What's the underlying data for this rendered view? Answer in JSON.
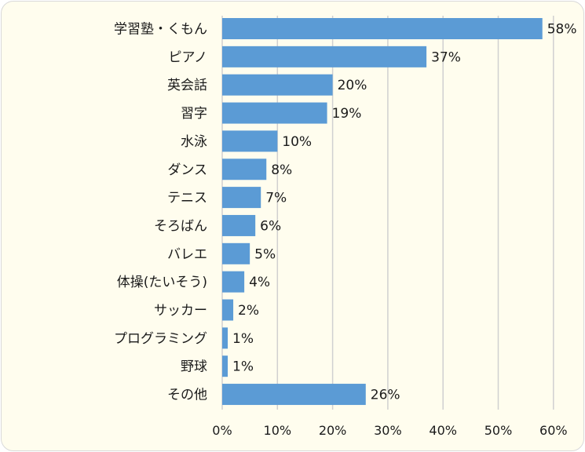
{
  "chart_data": {
    "type": "bar",
    "orientation": "horizontal",
    "categories": [
      "学習塾・くもん",
      "ピアノ",
      "英会話",
      "習字",
      "水泳",
      "ダンス",
      "テニス",
      "そろばん",
      "バレエ",
      "体操(たいそう)",
      "サッカー",
      "プログラミング",
      "野球",
      "その他"
    ],
    "values": [
      58,
      37,
      20,
      19,
      10,
      8,
      7,
      6,
      5,
      4,
      2,
      1,
      1,
      26
    ],
    "value_labels": [
      "58%",
      "37%",
      "20%",
      "19%",
      "10%",
      "8%",
      "7%",
      "6%",
      "5%",
      "4%",
      "2%",
      "1%",
      "1%",
      "26%"
    ],
    "xlim": [
      0,
      60
    ],
    "xticks": [
      0,
      10,
      20,
      30,
      40,
      50,
      60
    ],
    "xtick_labels": [
      "0%",
      "10%",
      "20%",
      "30%",
      "40%",
      "50%",
      "60%"
    ],
    "grid": true,
    "bar_color": "#5b9bd5",
    "background_color": "#fffdee"
  }
}
